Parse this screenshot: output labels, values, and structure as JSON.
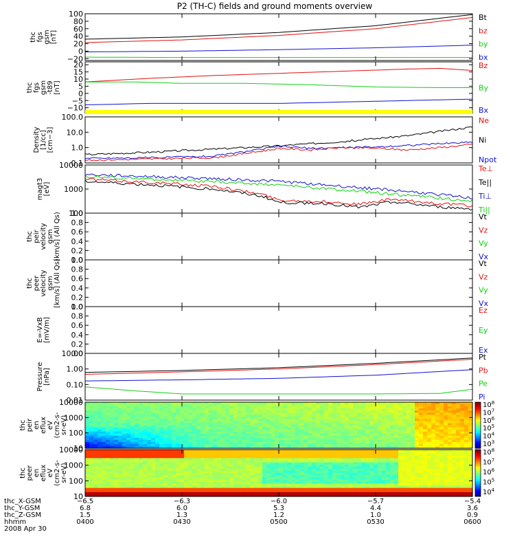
{
  "title": "P2 (TH-C) fields and ground moments overview",
  "colors": {
    "black": "#000000",
    "red": "#e01010",
    "green": "#10d010",
    "blue": "#1010d0",
    "yellow": "#ffff00"
  },
  "chart_data": [
    {
      "type": "line",
      "id": "fgs_gsm",
      "ylabel": [
        "thc",
        "fgs",
        "gsm",
        "[nT]"
      ],
      "ylim": [
        -25,
        100
      ],
      "yscale": "linear",
      "yticks": [
        {
          "v": 100,
          "t": "100"
        },
        {
          "v": 80,
          "t": "80"
        },
        {
          "v": 60,
          "t": "60"
        },
        {
          "v": 40,
          "t": "40"
        },
        {
          "v": 20,
          "t": "20"
        },
        {
          "v": 0,
          "t": "0"
        },
        {
          "v": -20,
          "t": "−20"
        }
      ],
      "legend": [
        {
          "t": "Bt",
          "c": "black"
        },
        {
          "t": "bz",
          "c": "red"
        },
        {
          "t": "by",
          "c": "green"
        },
        {
          "t": "bx",
          "c": "blue"
        }
      ],
      "series": [
        {
          "color": "black",
          "x": [
            0,
            30,
            60,
            90,
            120
          ],
          "y": [
            32,
            38,
            50,
            68,
            98
          ]
        },
        {
          "color": "red",
          "x": [
            0,
            30,
            60,
            90,
            120
          ],
          "y": [
            23,
            30,
            42,
            60,
            90
          ]
        },
        {
          "color": "blue",
          "x": [
            0,
            30,
            60,
            90,
            120
          ],
          "y": [
            -2,
            0,
            4,
            9,
            16
          ]
        },
        {
          "color": "green",
          "x": [
            0,
            30,
            60,
            90,
            120
          ],
          "y": [
            -16,
            -17,
            -17,
            -17,
            -17
          ]
        }
      ]
    },
    {
      "type": "line",
      "id": "fgs_gsm_t89",
      "ylabel": [
        "thc",
        "fgs",
        "gsm",
        "-t89",
        "[nT]"
      ],
      "ylim": [
        -14,
        22
      ],
      "yscale": "linear",
      "yticks": [
        {
          "v": 20,
          "t": "20"
        },
        {
          "v": 15,
          "t": "15"
        },
        {
          "v": 10,
          "t": "10"
        },
        {
          "v": 5,
          "t": "5"
        },
        {
          "v": 0,
          "t": "0"
        },
        {
          "v": -5,
          "t": "−5"
        },
        {
          "v": -10,
          "t": "−10"
        }
      ],
      "legend": [
        {
          "t": "Bz",
          "c": "red"
        },
        {
          "t": "By",
          "c": "green"
        },
        {
          "t": "Bx",
          "c": "blue"
        }
      ],
      "series": [
        {
          "color": "red",
          "x": [
            0,
            20,
            40,
            60,
            80,
            100,
            110,
            120
          ],
          "y": [
            8,
            10.5,
            12.5,
            14,
            15.5,
            17,
            17.5,
            16
          ]
        },
        {
          "color": "green",
          "x": [
            0,
            15,
            30,
            50,
            70,
            90,
            110,
            120
          ],
          "y": [
            8,
            8,
            7,
            7,
            6,
            4.5,
            4,
            4
          ]
        },
        {
          "color": "blue",
          "x": [
            0,
            20,
            40,
            60,
            80,
            100,
            120
          ],
          "y": [
            -8,
            -7,
            -7,
            -7,
            -6,
            -5,
            -4
          ]
        }
      ]
    },
    {
      "type": "line",
      "id": "density",
      "ylabel": [
        "Density",
        "[1/cc]",
        "[cm−3]"
      ],
      "ylim": [
        0.1,
        100
      ],
      "yscale": "log",
      "yticks": [
        {
          "v": 100,
          "t": "100.0"
        },
        {
          "v": 10,
          "t": "10.0"
        },
        {
          "v": 1,
          "t": "1.0"
        },
        {
          "v": 0.1,
          "t": "0.1"
        }
      ],
      "legend": [
        {
          "t": "Ne",
          "c": "red"
        },
        {
          "t": "Ni",
          "c": "black"
        },
        {
          "t": "Npot",
          "c": "blue"
        }
      ],
      "series": [
        {
          "color": "black",
          "x": [
            0,
            20,
            40,
            60,
            80,
            100,
            120
          ],
          "y": [
            0.35,
            0.5,
            0.8,
            1.3,
            2.5,
            6,
            22
          ]
        },
        {
          "color": "blue",
          "x": [
            0,
            20,
            40,
            55,
            60,
            70,
            80,
            90,
            100,
            110,
            120
          ],
          "y": [
            0.2,
            0.22,
            0.28,
            0.8,
            1.2,
            0.9,
            1.0,
            1.1,
            1.4,
            1.8,
            2.3
          ]
        },
        {
          "color": "red",
          "x": [
            0,
            20,
            40,
            55,
            60,
            70,
            80,
            90,
            100,
            110,
            120
          ],
          "y": [
            0.15,
            0.18,
            0.22,
            0.6,
            0.9,
            0.7,
            1.0,
            0.9,
            0.7,
            1.0,
            1.6
          ]
        }
      ]
    },
    {
      "type": "line",
      "id": "temperature",
      "ylabel": [
        "magt3",
        "[eV]"
      ],
      "ylim": [
        100,
        10000
      ],
      "yscale": "log",
      "yticks": [
        {
          "v": 10000,
          "t": "10000"
        },
        {
          "v": 1000,
          "t": "1000"
        },
        {
          "v": 100,
          "t": "100"
        }
      ],
      "legend": [
        {
          "t": "Te⊥",
          "c": "red"
        },
        {
          "t": "Te||",
          "c": "black"
        },
        {
          "t": "Ti⊥",
          "c": "blue"
        },
        {
          "t": "Ti||",
          "c": "green"
        }
      ],
      "series": [
        {
          "color": "blue",
          "x": [
            0,
            20,
            40,
            60,
            80,
            100,
            120
          ],
          "y": [
            4000,
            3300,
            2700,
            2100,
            1300,
            800,
            420
          ]
        },
        {
          "color": "green",
          "x": [
            0,
            20,
            40,
            60,
            80,
            100,
            120
          ],
          "y": [
            3300,
            2600,
            2000,
            1500,
            900,
            550,
            320
          ]
        },
        {
          "color": "red",
          "x": [
            0,
            20,
            40,
            55,
            60,
            75,
            85,
            95,
            100,
            110,
            120
          ],
          "y": [
            2600,
            1900,
            1300,
            600,
            350,
            300,
            230,
            380,
            320,
            250,
            200
          ]
        },
        {
          "color": "black",
          "x": [
            0,
            20,
            40,
            55,
            60,
            75,
            85,
            95,
            100,
            110,
            120
          ],
          "y": [
            2100,
            1500,
            1000,
            500,
            280,
            250,
            170,
            300,
            250,
            180,
            150
          ]
        }
      ]
    },
    {
      "type": "line",
      "id": "peir_velocity",
      "ylabel": [
        "thc",
        "peir",
        "velocity",
        "gsm",
        "[km/s] (All Qs)"
      ],
      "ylim": [
        0,
        1
      ],
      "yscale": "linear",
      "yticks": [
        {
          "v": 1,
          "t": "1.0"
        },
        {
          "v": 0.8,
          "t": "0.8"
        },
        {
          "v": 0.6,
          "t": "0.6"
        },
        {
          "v": 0.4,
          "t": "0.4"
        },
        {
          "v": 0.2,
          "t": "0.2"
        },
        {
          "v": 0,
          "t": "0.0"
        }
      ],
      "legend": [
        {
          "t": "Vt",
          "c": "black"
        },
        {
          "t": "Vz",
          "c": "red"
        },
        {
          "t": "Vy",
          "c": "green"
        },
        {
          "t": "Vx",
          "c": "blue"
        }
      ],
      "series": []
    },
    {
      "type": "line",
      "id": "peer_velocity",
      "ylabel": [
        "thc",
        "peer",
        "velocity",
        "gsm",
        "[km/s] (All Qs)"
      ],
      "ylim": [
        0,
        1
      ],
      "yscale": "linear",
      "yticks": [
        {
          "v": 1,
          "t": "1.0"
        },
        {
          "v": 0.8,
          "t": "0.8"
        },
        {
          "v": 0.6,
          "t": "0.6"
        },
        {
          "v": 0.4,
          "t": "0.4"
        },
        {
          "v": 0.2,
          "t": "0.2"
        },
        {
          "v": 0,
          "t": "0.0"
        }
      ],
      "legend": [
        {
          "t": "Vt",
          "c": "black"
        },
        {
          "t": "Vz",
          "c": "red"
        },
        {
          "t": "Vy",
          "c": "green"
        },
        {
          "t": "Vx",
          "c": "blue"
        }
      ],
      "series": []
    },
    {
      "type": "line",
      "id": "efield",
      "ylabel": [
        "E=-VxB",
        "[mV/m]"
      ],
      "ylim": [
        0,
        1
      ],
      "yscale": "linear",
      "yticks": [
        {
          "v": 1,
          "t": "1.0"
        },
        {
          "v": 0.8,
          "t": "0.8"
        },
        {
          "v": 0.6,
          "t": "0.6"
        },
        {
          "v": 0.4,
          "t": "0.4"
        },
        {
          "v": 0.2,
          "t": "0.2"
        },
        {
          "v": 0,
          "t": "0.0"
        }
      ],
      "legend": [
        {
          "t": "Ez",
          "c": "red"
        },
        {
          "t": "Ey",
          "c": "green"
        },
        {
          "t": "Ex",
          "c": "blue"
        }
      ],
      "series": []
    },
    {
      "type": "line",
      "id": "pressure",
      "ylabel": [
        "Pressure",
        "[nPa]"
      ],
      "ylim": [
        0.01,
        10
      ],
      "yscale": "log",
      "yticks": [
        {
          "v": 10,
          "t": "10.00"
        },
        {
          "v": 1,
          "t": "1.00"
        },
        {
          "v": 0.1,
          "t": "0.10"
        },
        {
          "v": 0.01,
          "t": "0.01"
        }
      ],
      "legend": [
        {
          "t": "Pt",
          "c": "black"
        },
        {
          "t": "Pb",
          "c": "red"
        },
        {
          "t": "Pe",
          "c": "green"
        },
        {
          "t": "Pi",
          "c": "blue"
        }
      ],
      "series": [
        {
          "color": "black",
          "x": [
            0,
            30,
            60,
            90,
            120
          ],
          "y": [
            0.6,
            0.8,
            1.2,
            2.3,
            5
          ]
        },
        {
          "color": "red",
          "x": [
            0,
            30,
            60,
            90,
            120
          ],
          "y": [
            0.45,
            0.65,
            1.0,
            1.9,
            4.2
          ]
        },
        {
          "color": "blue",
          "x": [
            0,
            30,
            60,
            90,
            120
          ],
          "y": [
            0.17,
            0.2,
            0.25,
            0.4,
            0.9
          ]
        },
        {
          "color": "green",
          "x": [
            0,
            15,
            30,
            60,
            90,
            110,
            120
          ],
          "y": [
            0.07,
            0.04,
            0.025,
            0.025,
            0.025,
            0.027,
            0.05
          ]
        }
      ]
    },
    {
      "type": "heatmap",
      "id": "peir_eflux",
      "ylabel": [
        "thc",
        "peir",
        "en",
        "eflux",
        "eV",
        "(cm2-s-",
        "sr-eV)"
      ],
      "ylim": [
        10,
        10000
      ],
      "yscale": "log",
      "yticks": [
        {
          "v": 10000,
          "t": "10000"
        },
        {
          "v": 1000,
          "t": "1000"
        },
        {
          "v": 100,
          "t": "100"
        },
        {
          "v": 10,
          "t": "10"
        }
      ],
      "colorbar": {
        "range_exp": [
          3,
          8
        ],
        "labels": [
          "10^8",
          "10^7",
          "10^6",
          "10^5",
          "10^4",
          "10^3"
        ]
      }
    },
    {
      "type": "heatmap",
      "id": "peer_eflux",
      "ylabel": [
        "thc",
        "peer",
        "en",
        "eflux",
        "eV",
        "(cm2-s-",
        "sr-eV)"
      ],
      "ylim": [
        10,
        10000
      ],
      "yscale": "log",
      "yticks": [
        {
          "v": 10000,
          "t": "10000"
        },
        {
          "v": 1000,
          "t": "1000"
        },
        {
          "v": 100,
          "t": "100"
        },
        {
          "v": 10,
          "t": "10"
        }
      ],
      "colorbar": {
        "range_exp": [
          4,
          8
        ],
        "labels": [
          "10^8",
          "10^7",
          "10^6",
          "10^5",
          "10^4"
        ]
      }
    }
  ],
  "xaxis": {
    "range_min": [
      0,
      120
    ],
    "tick_min": [
      0,
      30,
      60,
      90,
      120
    ],
    "rows": [
      {
        "label": "thc_X-GSM",
        "values": [
          "−6.5",
          "−6.3",
          "−6.0",
          "−5.7",
          "−5.4"
        ]
      },
      {
        "label": "thc_Y-GSM",
        "values": [
          "6.8",
          "6.0",
          "5.3",
          "4.4",
          "3.6"
        ]
      },
      {
        "label": "thc_Z-GSM",
        "values": [
          "1.5",
          "1.3",
          "1.2",
          "1.0",
          "0.9"
        ]
      },
      {
        "label": "hhmm",
        "values": [
          "0400",
          "0430",
          "0500",
          "0530",
          "0600"
        ]
      }
    ],
    "date": "2008 Apr 30"
  }
}
